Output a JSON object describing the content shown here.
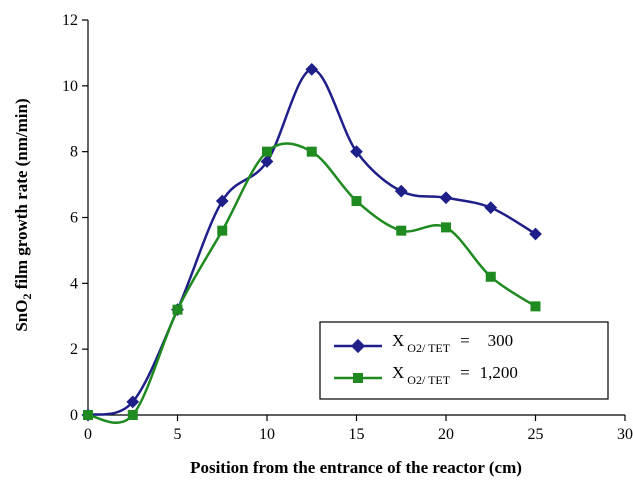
{
  "chart_data": {
    "type": "line",
    "title": "",
    "xlabel": "Position from the entrance of the reactor (cm)",
    "ylabel": "SnO2 film growth rate (nm/min)",
    "ylabel_parts": {
      "pre": "Sn",
      "sub": "O",
      "sub2": "2",
      "post": " film growth rate (nm/min)"
    },
    "xlim": [
      0,
      30
    ],
    "ylim": [
      0,
      12
    ],
    "x_ticks": [
      "0",
      "5",
      "10",
      "15",
      "20",
      "25",
      "30"
    ],
    "y_ticks": [
      "0",
      "2",
      "4",
      "6",
      "8",
      "10",
      "12"
    ],
    "grid": false,
    "legend_position": "bottom-right",
    "series": [
      {
        "legend": {
          "x_label": "X",
          "sub_label": "O2/ TET",
          "eq": "=",
          "value": "300"
        },
        "color": "#1f1f8a",
        "marker": "diamond",
        "x": [
          0,
          2.5,
          5,
          7.5,
          10,
          12.5,
          15,
          17.5,
          20,
          22.5,
          25
        ],
        "values": [
          0,
          0.4,
          3.2,
          6.5,
          7.7,
          10.5,
          8.0,
          6.8,
          6.6,
          6.3,
          5.5
        ]
      },
      {
        "legend": {
          "x_label": "X",
          "sub_label": "O2/ TET",
          "eq": "=",
          "value": "1,200"
        },
        "color": "#1f8a1f",
        "marker": "square",
        "x": [
          0,
          2.5,
          5,
          7.5,
          10,
          12.5,
          15,
          17.5,
          20,
          22.5,
          25
        ],
        "values": [
          0,
          0,
          3.2,
          5.6,
          8.0,
          8.0,
          6.5,
          5.6,
          5.7,
          4.2,
          3.3
        ]
      }
    ]
  }
}
